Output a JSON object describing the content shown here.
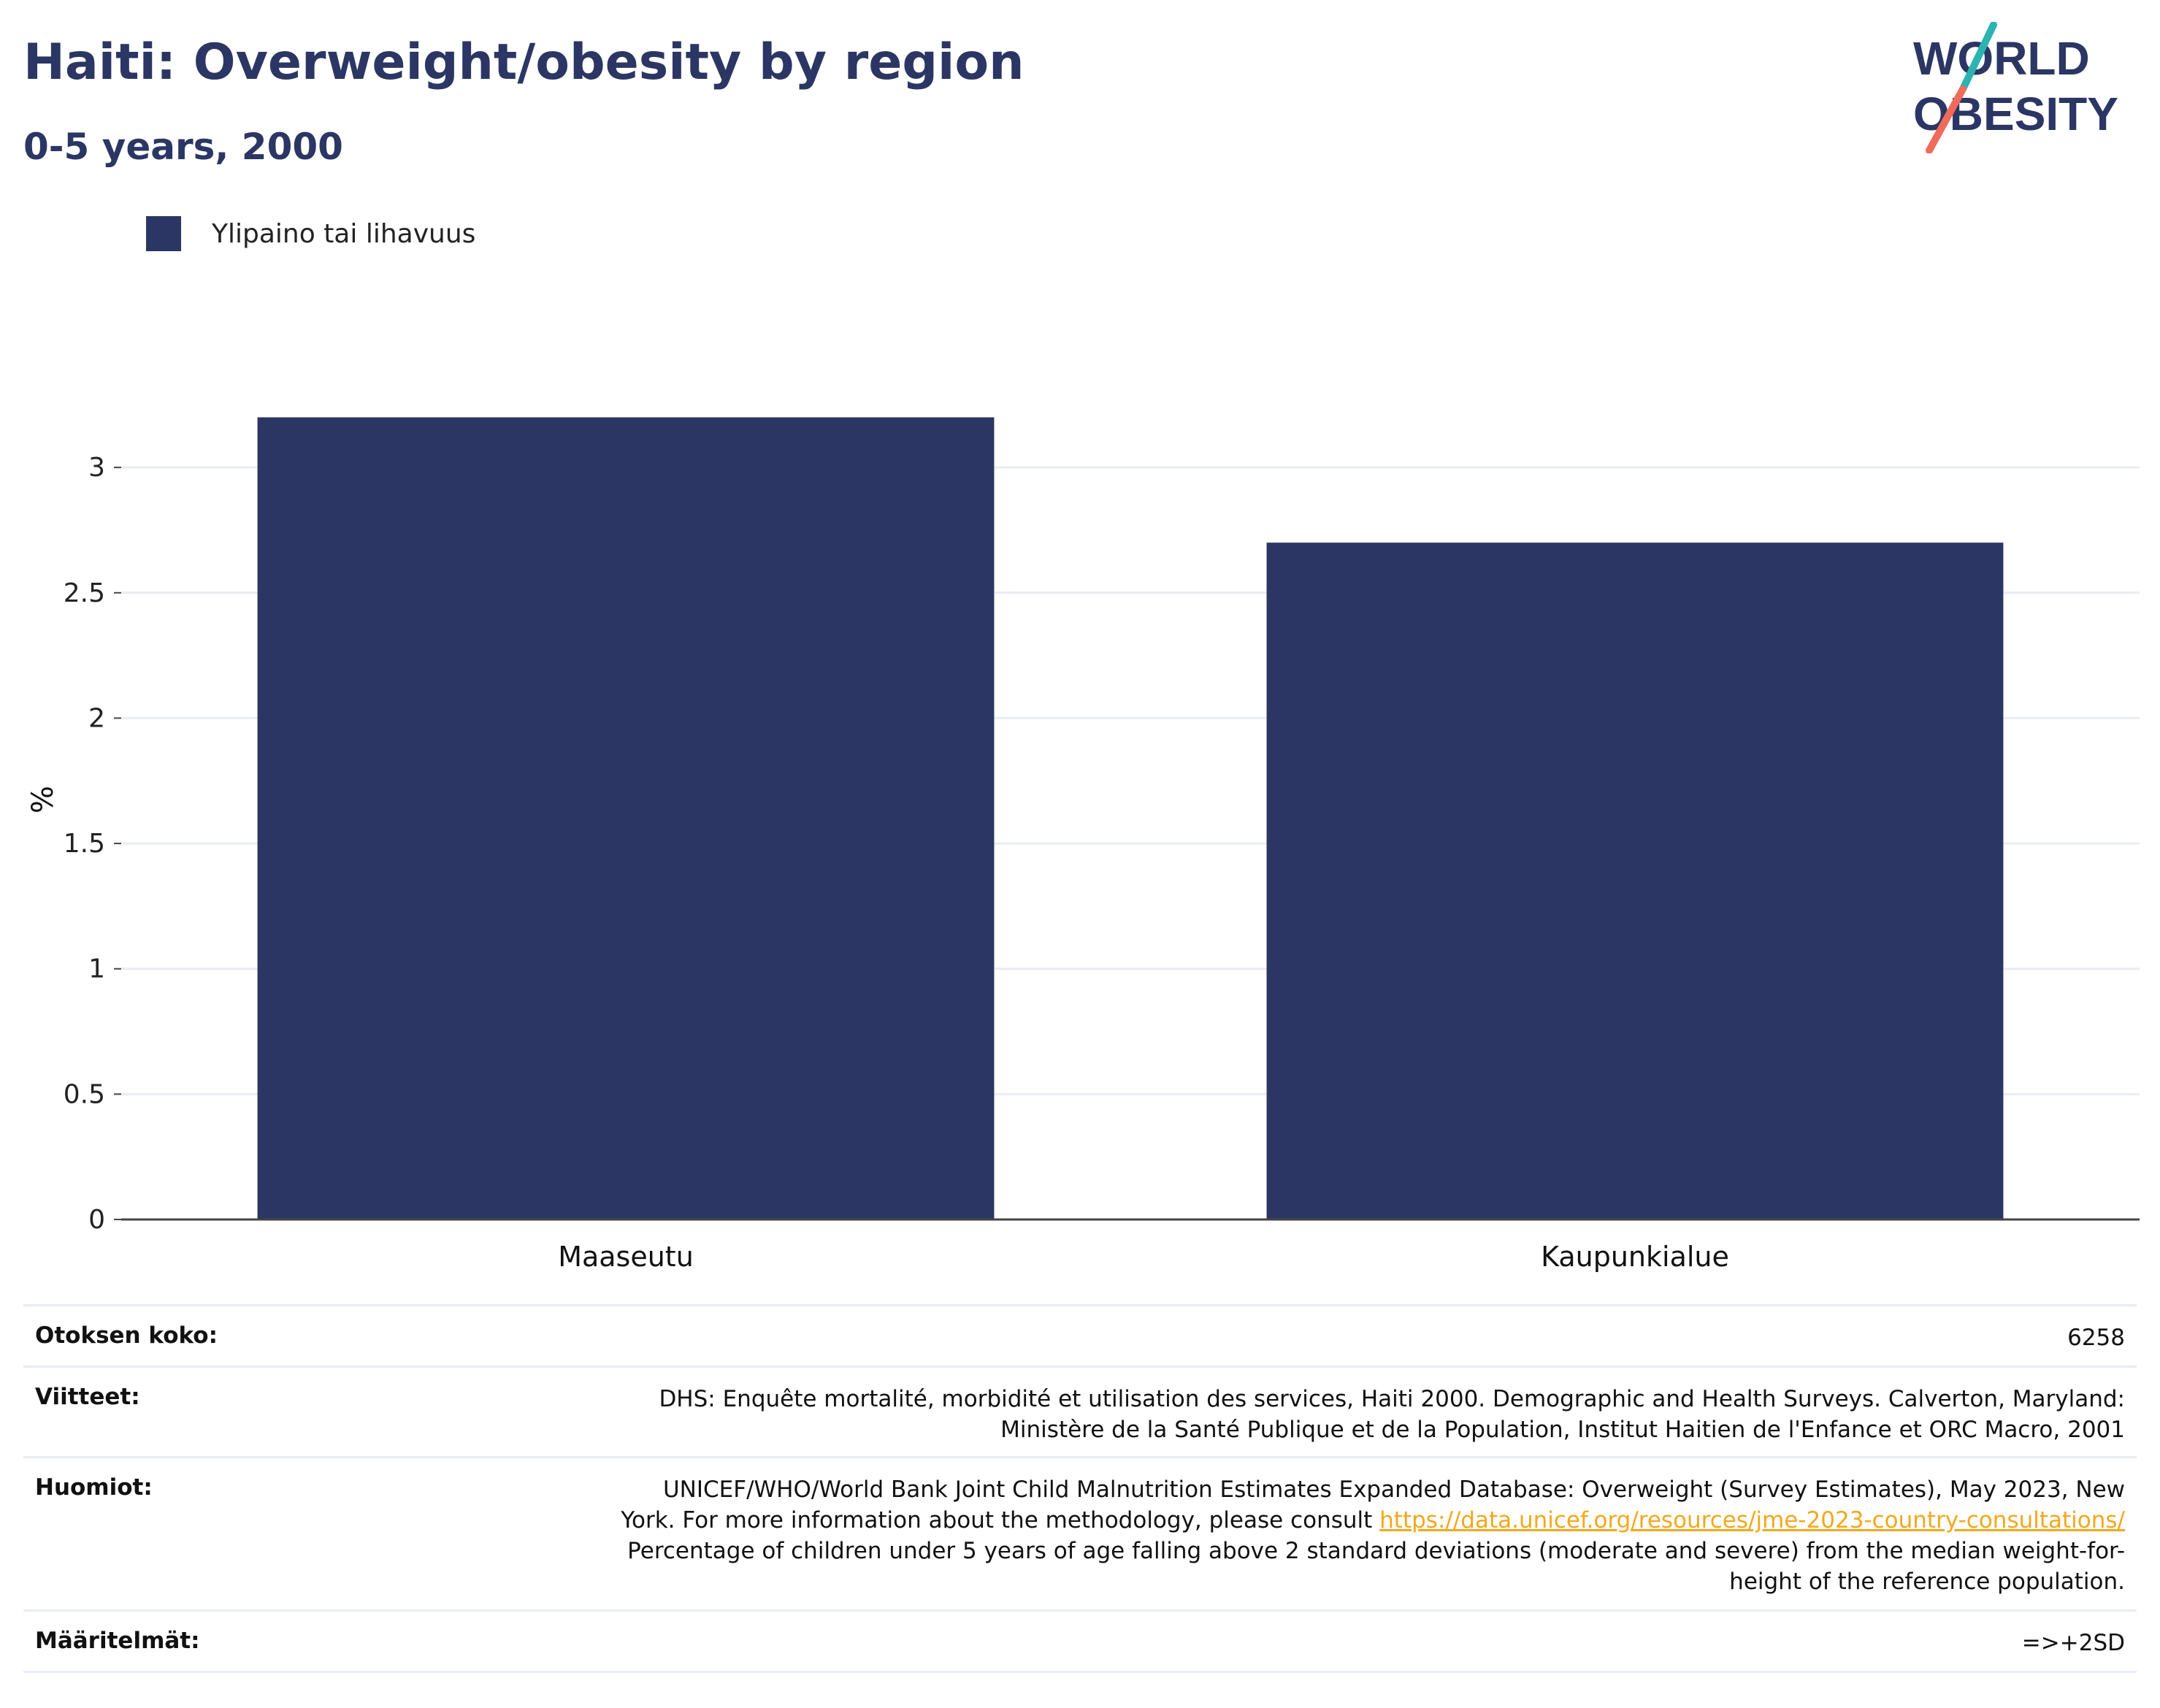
{
  "header": {
    "title": "Haiti: Overweight/obesity by region",
    "subtitle": "0-5 years, 2000"
  },
  "logo": {
    "line1": "WORLD",
    "line2": "OBESITY",
    "colors": {
      "text": "#2b3664",
      "slash_top": "#2bb3b1",
      "slash_bottom": "#f06b5b"
    }
  },
  "legend": {
    "label": "Ylipaino tai lihavuus",
    "color": "#2b3664"
  },
  "chart_data": {
    "type": "bar",
    "categories": [
      "Maaseutu",
      "Kaupunkialue"
    ],
    "series": [
      {
        "name": "Ylipaino tai lihavuus",
        "values": [
          3.2,
          2.7
        ],
        "color": "#2b3664"
      }
    ],
    "ylabel": "%",
    "xlabel": "",
    "ylim": [
      0,
      3.35
    ],
    "yticks": [
      0,
      0.5,
      1,
      1.5,
      2,
      2.5,
      3
    ],
    "ytick_labels": [
      "0",
      "0.5",
      "1",
      "1.5",
      "2",
      "2.5",
      "3"
    ],
    "grid": true,
    "legend_position": "top-left"
  },
  "info": {
    "sample_size": {
      "label": "Otoksen koko:",
      "value": "6258"
    },
    "references": {
      "label": "Viitteet:",
      "value_line1": "DHS: Enquête mortalité, morbidité et utilisation des services, Haiti 2000. Demographic and Health Surveys. Calverton, Maryland:",
      "value_line2": "Ministère de la Santé Publique et de la Population, Institut Haitien de l'Enfance et ORC Macro, 2001"
    },
    "notes": {
      "label": "Huomiot:",
      "line1": "UNICEF/WHO/World Bank Joint Child Malnutrition Estimates Expanded Database: Overweight (Survey Estimates), May 2023, New",
      "line2_prefix": "York. For more information about the methodology, please consult",
      "link": "https://data.unicef.org/resources/jme-2023-country-consultations/",
      "line3": "Percentage of children under 5 years of age falling above 2 standard deviations (moderate and severe) from the median weight-for-",
      "line4": "height of the reference population."
    },
    "definitions": {
      "label": "Määritelmät:",
      "value": "=>+2SD"
    }
  }
}
